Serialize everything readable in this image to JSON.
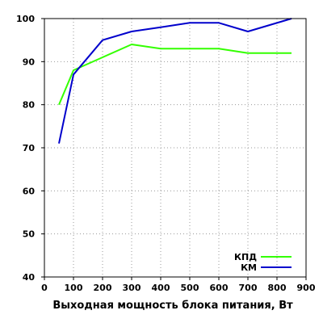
{
  "chart_data": {
    "type": "line",
    "title": "",
    "xlabel": "Выходная мощность блока питания, Вт",
    "ylabel": "",
    "xlim": [
      0,
      900
    ],
    "ylim": [
      40,
      100
    ],
    "x_ticks": [
      0,
      100,
      200,
      300,
      400,
      500,
      600,
      700,
      800,
      900
    ],
    "y_ticks": [
      40,
      50,
      60,
      70,
      80,
      90,
      100
    ],
    "grid": true,
    "grid_style": "dotted",
    "legend_position": "bottom-right",
    "series": [
      {
        "name": "КПД",
        "color": "#33ff00",
        "x": [
          50,
          100,
          200,
          300,
          400,
          500,
          600,
          700,
          850
        ],
        "values": [
          80,
          88,
          91,
          94,
          93,
          93,
          93,
          92,
          92
        ]
      },
      {
        "name": "КМ",
        "color": "#0000cc",
        "x": [
          50,
          100,
          200,
          300,
          400,
          500,
          600,
          700,
          850
        ],
        "values": [
          71,
          87,
          95,
          97,
          98,
          99,
          99,
          97,
          100
        ]
      }
    ]
  }
}
